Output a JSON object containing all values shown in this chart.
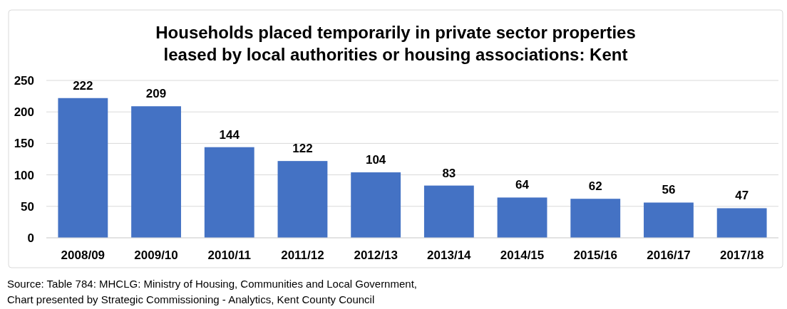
{
  "chart_data": {
    "type": "bar",
    "title": "Households placed temporarily in private sector properties\nleased by local authorities or housing associations: Kent",
    "categories": [
      "2008/09",
      "2009/10",
      "2010/11",
      "2011/12",
      "2012/13",
      "2013/14",
      "2014/15",
      "2015/16",
      "2016/17",
      "2017/18"
    ],
    "values": [
      222,
      209,
      144,
      122,
      104,
      83,
      64,
      62,
      56,
      47
    ],
    "color": "#4472c4",
    "ylim": [
      0,
      250
    ],
    "yticks": [
      0,
      50,
      100,
      150,
      200,
      250
    ],
    "grid": "y",
    "data_labels": true,
    "annotations": [
      "Source: Table 784: MHCLG: Ministry of Housing, Communities and Local Government,",
      "Chart presented by Strategic Commissioning - Analytics, Kent County Council"
    ]
  }
}
